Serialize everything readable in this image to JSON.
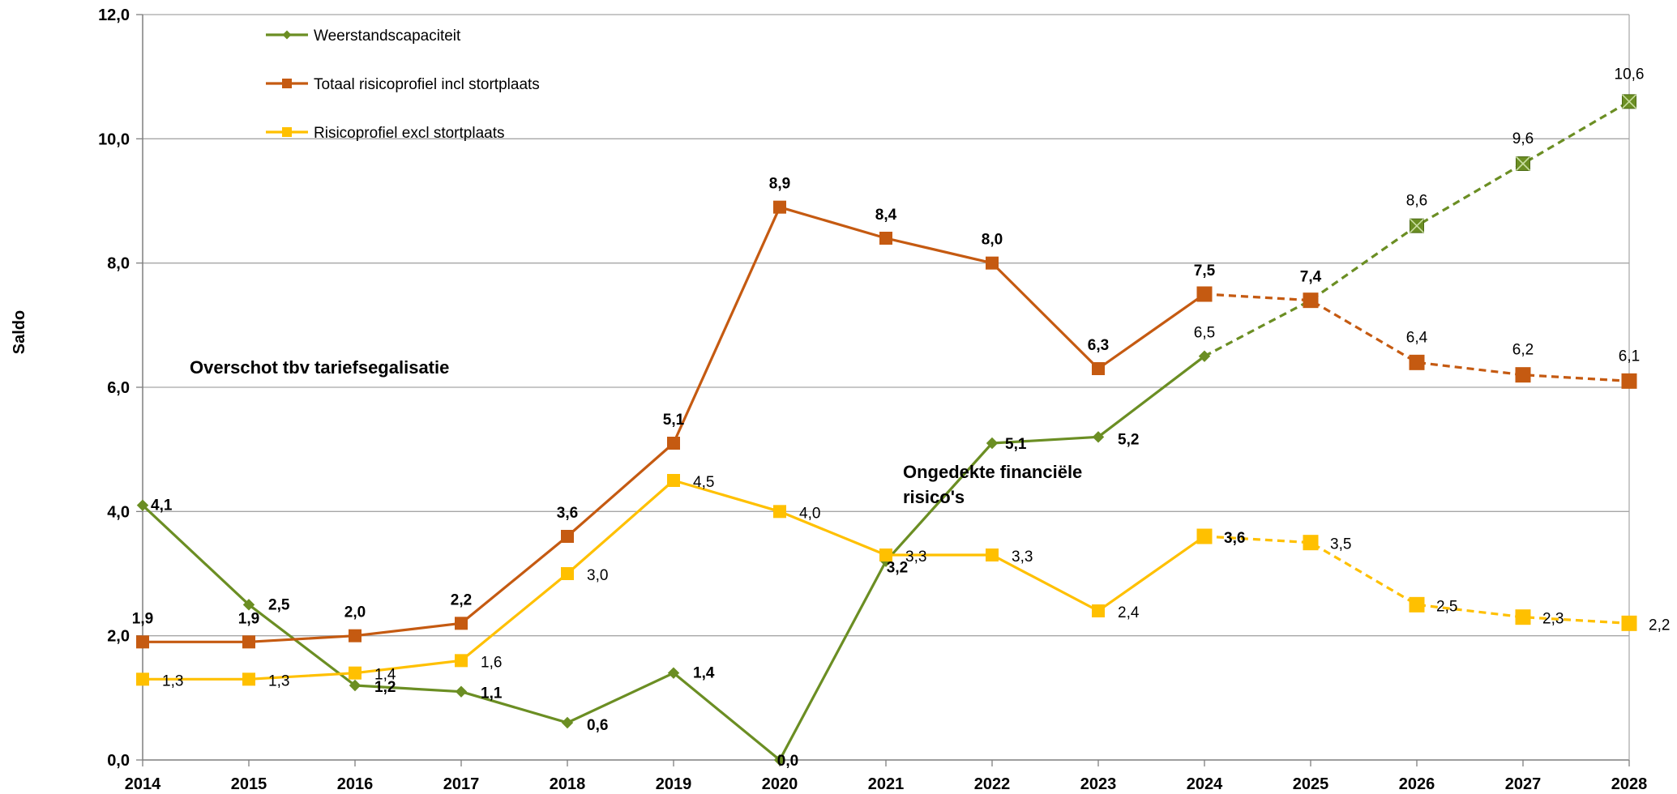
{
  "chart_data": {
    "type": "line",
    "ylabel": "Saldo",
    "xlabel": "",
    "ylim": [
      0,
      12
    ],
    "yticks": [
      "0,0",
      "2,0",
      "4,0",
      "6,0",
      "8,0",
      "10,0",
      "12,0"
    ],
    "categories": [
      "2014",
      "2015",
      "2016",
      "2017",
      "2018",
      "2019",
      "2020",
      "2021",
      "2022",
      "2023",
      "2024",
      "2025",
      "2026",
      "2027",
      "2028"
    ],
    "grid": true,
    "legend_position": "top-left",
    "series": [
      {
        "name": "Weerstandscapaciteit",
        "color": "#6b8e23",
        "marker": "diamond",
        "values": [
          4.1,
          2.5,
          1.2,
          1.1,
          0.6,
          1.4,
          0.0,
          3.2,
          5.1,
          5.2,
          6.5,
          7.4,
          8.6,
          9.6,
          10.6
        ],
        "labels": [
          "4,1",
          "2,5",
          "1,2",
          "1,1",
          "0,6",
          "1,4",
          "0,0",
          "3,2",
          "5,1",
          "5,2",
          "6,5",
          "",
          "8,6",
          "9,6",
          "10,6"
        ],
        "projected_from_index": 10
      },
      {
        "name": "Totaal risicoprofiel incl stortplaats",
        "color": "#c55a11",
        "marker": "square",
        "values": [
          1.9,
          1.9,
          2.0,
          2.2,
          3.6,
          5.1,
          8.9,
          8.4,
          8.0,
          6.3,
          7.5,
          7.4,
          6.4,
          6.2,
          6.1
        ],
        "labels": [
          "1,9",
          "1,9",
          "2,0",
          "2,2",
          "3,6",
          "5,1",
          "8,9",
          "8,4",
          "8,0",
          "6,3",
          "7,5",
          "7,4",
          "6,4",
          "6,2",
          "6,1"
        ],
        "projected_from_index": 10
      },
      {
        "name": "Risicoprofiel excl stortplaats",
        "color": "#ffc000",
        "marker": "square",
        "values": [
          1.3,
          1.3,
          1.4,
          1.6,
          3.0,
          4.5,
          4.0,
          3.3,
          3.3,
          2.4,
          3.6,
          3.5,
          2.5,
          2.3,
          2.2
        ],
        "labels": [
          "1,3",
          "1,3",
          "1,4",
          "1,6",
          "3,0",
          "4,5",
          "4,0",
          "3,3",
          "3,3",
          "2,4",
          "3,6",
          "3,5",
          "2,5",
          "2,3",
          "2,2"
        ],
        "projected_from_index": 10
      }
    ],
    "annotations": [
      {
        "text": "Overschot tbv tariefsegalisatie"
      },
      {
        "text": "Ongedekte financiële"
      },
      {
        "text": "risico's"
      }
    ]
  }
}
